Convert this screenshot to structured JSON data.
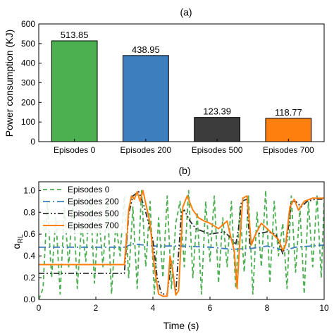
{
  "chart_data": [
    {
      "type": "bar",
      "title": "(a)",
      "ylabel": "Power consumption (KJ)",
      "xlabel": "",
      "categories": [
        "Episodes 0",
        "Episodes 200",
        "Episodes 500",
        "Episodes 700"
      ],
      "values": [
        513.85,
        438.95,
        123.39,
        118.77
      ],
      "value_labels": [
        "513.85",
        "438.95",
        "123.39",
        "118.77"
      ],
      "colors": [
        "#4caf50",
        "#3d7ebf",
        "#3c3c3c",
        "#ff7f0e"
      ],
      "ylim": [
        0,
        600
      ],
      "yticks": [
        0,
        100,
        200,
        300,
        400,
        500,
        600
      ],
      "grid": false
    },
    {
      "type": "line",
      "title": "(b)",
      "xlabel": "Time (s)",
      "ylabel_main": "α",
      "ylabel_sub": "RL",
      "xlim": [
        0,
        10
      ],
      "ylim": [
        0,
        1.08
      ],
      "xticks": [
        0,
        2,
        4,
        6,
        8,
        10
      ],
      "yticks": [
        0.0,
        0.2,
        0.4,
        0.6,
        0.8,
        1.0
      ],
      "ytick_labels": [
        "0.0",
        "0.2",
        "0.4",
        "0.6",
        "0.8",
        "1.0"
      ],
      "legend_position": "top-left",
      "grid": false,
      "series": [
        {
          "name": "Episodes 0",
          "color": "#4caf50",
          "dash": "dashed",
          "x": [
            0.0,
            0.15,
            0.3,
            0.45,
            0.6,
            0.75,
            0.9,
            1.05,
            1.2,
            1.35,
            1.5,
            1.65,
            1.8,
            1.95,
            2.1,
            2.25,
            2.4,
            2.55,
            2.7,
            2.85,
            3.0,
            3.15,
            3.3,
            3.45,
            3.6,
            3.75,
            3.9,
            4.05,
            4.2,
            4.35,
            4.5,
            4.65,
            4.8,
            4.95,
            5.1,
            5.25,
            5.4,
            5.55,
            5.7,
            5.85,
            6.0,
            6.15,
            6.3,
            6.45,
            6.6,
            6.75,
            6.9,
            7.05,
            7.2,
            7.35,
            7.5,
            7.65,
            7.8,
            7.95,
            8.1,
            8.25,
            8.4,
            8.55,
            8.7,
            8.85,
            9.0,
            9.15,
            9.3,
            9.45,
            9.6,
            9.75,
            9.9,
            10.0
          ],
          "y": [
            0.0,
            0.1,
            0.9,
            0.2,
            0.75,
            0.05,
            0.85,
            0.3,
            0.95,
            0.1,
            0.7,
            0.35,
            1.0,
            0.15,
            0.8,
            0.3,
            0.9,
            0.05,
            0.7,
            0.4,
            0.95,
            0.2,
            0.85,
            0.1,
            1.0,
            0.3,
            0.9,
            0.05,
            0.75,
            0.2,
            0.95,
            0.1,
            0.7,
            0.9,
            0.3,
            1.0,
            0.2,
            0.8,
            0.05,
            0.9,
            0.35,
            0.95,
            0.15,
            0.75,
            0.3,
            0.9,
            0.1,
            0.85,
            0.25,
            0.95,
            0.05,
            0.8,
            0.3,
            1.0,
            0.15,
            0.9,
            0.4,
            0.7,
            0.1,
            0.95,
            0.25,
            0.85,
            0.05,
            0.9,
            0.3,
            0.95,
            0.2,
            0.9
          ]
        },
        {
          "name": "Episodes 200",
          "color": "#3d7ebf",
          "dash": "dashdot",
          "x": [
            0.0,
            1.0,
            2.0,
            3.0,
            3.3,
            4.0,
            5.0,
            6.0,
            6.8,
            7.5,
            8.0,
            8.6,
            9.0,
            10.0
          ],
          "y": [
            0.48,
            0.48,
            0.48,
            0.48,
            0.51,
            0.49,
            0.49,
            0.48,
            0.46,
            0.47,
            0.49,
            0.45,
            0.48,
            0.5
          ]
        },
        {
          "name": "Episodes 500",
          "color": "#2f2f2f",
          "dash": "dashdotdot",
          "x": [
            0.0,
            1.0,
            2.0,
            3.0,
            3.15,
            3.3,
            3.5,
            3.7,
            4.0,
            4.15,
            4.3,
            4.5,
            4.65,
            4.8,
            5.0,
            5.1,
            5.3,
            5.5,
            6.0,
            6.5,
            6.8,
            6.9,
            7.0,
            7.1,
            7.3,
            7.4,
            7.6,
            8.0,
            8.3,
            8.55,
            8.7,
            8.85,
            9.0,
            9.2,
            9.4,
            9.7,
            10.0
          ],
          "y": [
            0.24,
            0.24,
            0.24,
            0.24,
            0.78,
            0.95,
            0.99,
            0.85,
            0.55,
            0.2,
            0.05,
            0.05,
            0.35,
            0.05,
            0.8,
            0.82,
            0.72,
            0.65,
            0.6,
            0.62,
            0.55,
            0.5,
            0.65,
            0.9,
            0.92,
            0.48,
            0.6,
            0.62,
            0.6,
            0.42,
            0.55,
            0.9,
            0.9,
            0.85,
            0.9,
            0.92,
            0.92
          ]
        },
        {
          "name": "Episodes 700",
          "color": "#ff7f0e",
          "dash": "solid",
          "x": [
            0.0,
            1.0,
            2.0,
            3.0,
            3.15,
            3.25,
            3.35,
            3.45,
            3.55,
            3.65,
            3.75,
            3.9,
            4.05,
            4.2,
            4.35,
            4.5,
            4.6,
            4.7,
            4.8,
            4.9,
            5.05,
            5.2,
            5.4,
            5.6,
            5.8,
            6.0,
            6.3,
            6.6,
            6.75,
            6.85,
            6.95,
            7.05,
            7.15,
            7.3,
            7.45,
            7.6,
            7.8,
            8.0,
            8.2,
            8.4,
            8.55,
            8.65,
            8.8,
            8.95,
            9.1,
            9.3,
            9.6,
            10.0
          ],
          "y": [
            0.32,
            0.32,
            0.32,
            0.32,
            0.82,
            0.95,
            0.92,
            0.99,
            0.9,
            1.0,
            0.88,
            0.7,
            0.3,
            0.05,
            0.03,
            0.03,
            0.4,
            0.25,
            0.04,
            0.08,
            0.85,
            0.95,
            0.82,
            0.75,
            0.72,
            0.7,
            0.65,
            0.72,
            0.55,
            0.45,
            0.1,
            0.55,
            0.93,
            0.95,
            0.5,
            0.6,
            0.7,
            0.65,
            0.6,
            0.55,
            0.45,
            0.5,
            0.85,
            0.92,
            0.82,
            0.9,
            0.93,
            0.93
          ]
        }
      ]
    }
  ]
}
